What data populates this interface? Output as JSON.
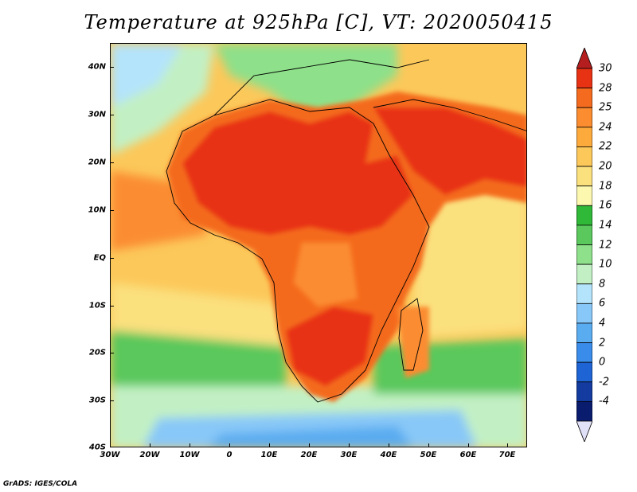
{
  "title": "Temperature at 925hPa [C], VT: 2020050415",
  "credit": "GrADS: IGES/COLA",
  "lat_labels": [
    "40N",
    "30N",
    "20N",
    "10N",
    "EQ",
    "10S",
    "20S",
    "30S",
    "40S"
  ],
  "lon_labels": [
    "30W",
    "20W",
    "10W",
    "0",
    "10E",
    "20E",
    "30E",
    "40E",
    "50E",
    "60E",
    "70E"
  ],
  "colorbar": {
    "labels": [
      "30",
      "28",
      "25",
      "24",
      "22",
      "20",
      "18",
      "16",
      "14",
      "12",
      "10",
      "8",
      "6",
      "4",
      "2",
      "0",
      "-2",
      "-4"
    ],
    "colors": [
      "#e83214",
      "#f46a1e",
      "#fb8c30",
      "#fdaa3c",
      "#fcc85a",
      "#fbe07e",
      "#fdf8b0",
      "#30b838",
      "#5ac85c",
      "#8ee08a",
      "#c2f0c4",
      "#b4e4fb",
      "#88c8f8",
      "#5aacf0",
      "#3a8cea",
      "#1e64d4",
      "#143ca0",
      "#0a1c6e"
    ],
    "top_color": "#b41e1e",
    "bottom_color": "#e0e0f8"
  },
  "extent": {
    "lon": [
      -30,
      76
    ],
    "lat": [
      -40,
      45
    ]
  }
}
